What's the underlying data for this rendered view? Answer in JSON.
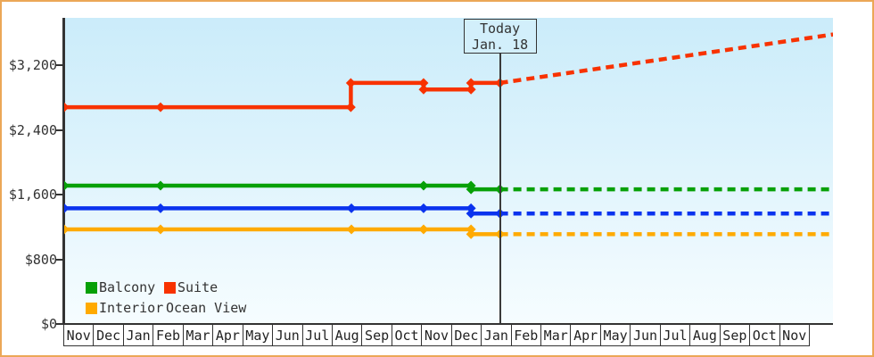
{
  "window": {
    "border_color": "#eba757",
    "background": "#ffffff"
  },
  "today_box": {
    "line1": "Today",
    "line2": "Jan. 18"
  },
  "legend": {
    "items": [
      {
        "label": "Balcony",
        "color": "#07a007"
      },
      {
        "label": "Suite",
        "color": "#f83200"
      },
      {
        "label": "Interior",
        "color": "#ffaa00"
      },
      {
        "label": "Ocean View",
        "color": "#0a33ee"
      }
    ]
  },
  "chart_data": {
    "type": "line",
    "title": "",
    "xlabel": "",
    "ylabel": "",
    "x_axis": {
      "unit": "month",
      "tick_labels": [
        "Nov",
        "Dec",
        "Jan",
        "Feb",
        "Mar",
        "Apr",
        "May",
        "Jun",
        "Jul",
        "Aug",
        "Sep",
        "Oct",
        "Nov",
        "Dec",
        "Jan",
        "Feb",
        "Mar",
        "Apr",
        "May",
        "Jun",
        "Jul",
        "Aug",
        "Sep",
        "Oct",
        "Nov"
      ],
      "t_range": [
        0,
        25.78
      ]
    },
    "y_axis": {
      "ticks": [
        {
          "label": "$3,200",
          "value": 3200
        },
        {
          "label": "$2,400",
          "value": 2400
        },
        {
          "label": "$1,600",
          "value": 1600
        },
        {
          "label": "$800",
          "value": 800
        },
        {
          "label": "$0",
          "value": 0
        }
      ],
      "range": [
        0,
        3790
      ],
      "grid": false
    },
    "today_t_months": 14.61,
    "legend_position": "bottom-left-inside",
    "series": [
      {
        "name": "Suite",
        "color": "#f83200",
        "solid_points": [
          [
            0,
            2680
          ],
          [
            3.23,
            2680
          ],
          [
            9.61,
            2680
          ],
          [
            9.61,
            2980
          ],
          [
            12.05,
            2980
          ],
          [
            12.05,
            2900
          ],
          [
            13.64,
            2900
          ],
          [
            13.64,
            2980
          ],
          [
            14.61,
            2980
          ]
        ],
        "forecast_points": [
          [
            14.61,
            2980
          ],
          [
            25.78,
            3580
          ]
        ]
      },
      {
        "name": "Balcony",
        "color": "#07a007",
        "solid_points": [
          [
            0,
            1710
          ],
          [
            3.23,
            1710
          ],
          [
            12.05,
            1710
          ],
          [
            13.64,
            1710
          ],
          [
            13.64,
            1665
          ],
          [
            14.61,
            1665
          ]
        ],
        "forecast_points": [
          [
            14.61,
            1665
          ],
          [
            25.78,
            1665
          ]
        ]
      },
      {
        "name": "Ocean View",
        "color": "#0a33ee",
        "solid_points": [
          [
            0,
            1430
          ],
          [
            3.23,
            1430
          ],
          [
            9.63,
            1430
          ],
          [
            12.05,
            1430
          ],
          [
            13.64,
            1430
          ],
          [
            13.64,
            1365
          ],
          [
            14.61,
            1365
          ]
        ],
        "forecast_points": [
          [
            14.61,
            1365
          ],
          [
            25.78,
            1365
          ]
        ]
      },
      {
        "name": "Interior",
        "color": "#ffaa00",
        "solid_points": [
          [
            0,
            1170
          ],
          [
            3.23,
            1170
          ],
          [
            9.63,
            1170
          ],
          [
            12.05,
            1170
          ],
          [
            13.64,
            1170
          ],
          [
            13.64,
            1110
          ],
          [
            14.61,
            1110
          ]
        ],
        "forecast_points": [
          [
            14.61,
            1110
          ],
          [
            25.78,
            1110
          ]
        ]
      }
    ]
  }
}
